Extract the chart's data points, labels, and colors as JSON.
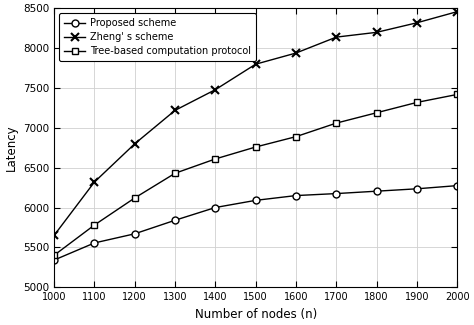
{
  "x": [
    1000,
    1100,
    1200,
    1300,
    1400,
    1500,
    1600,
    1700,
    1800,
    1900,
    2000
  ],
  "proposed_scheme": [
    5340,
    5555,
    5670,
    5840,
    6000,
    6090,
    6150,
    6175,
    6205,
    6235,
    6275
  ],
  "zheng_scheme": [
    5650,
    6320,
    6800,
    7220,
    7480,
    7800,
    7940,
    8140,
    8200,
    8320,
    8460
  ],
  "tree_based": [
    5400,
    5780,
    6120,
    6430,
    6610,
    6760,
    6890,
    7060,
    7190,
    7320,
    7420
  ],
  "xlabel": "Number of nodes (n)",
  "ylabel": "Latency",
  "xlim": [
    1000,
    2000
  ],
  "ylim": [
    5000,
    8500
  ],
  "yticks": [
    5000,
    5500,
    6000,
    6500,
    7000,
    7500,
    8000,
    8500
  ],
  "xticks": [
    1000,
    1100,
    1200,
    1300,
    1400,
    1500,
    1600,
    1700,
    1800,
    1900,
    2000
  ],
  "legend_labels": [
    "Proposed scheme",
    "Zheng' s scheme",
    "Tree-based computation protocol"
  ],
  "line_color": "#000000",
  "background_color": "#ffffff",
  "grid_color": "#d0d0d0",
  "axes_bg": "#ffffff",
  "fig_bg": "#ffffff"
}
